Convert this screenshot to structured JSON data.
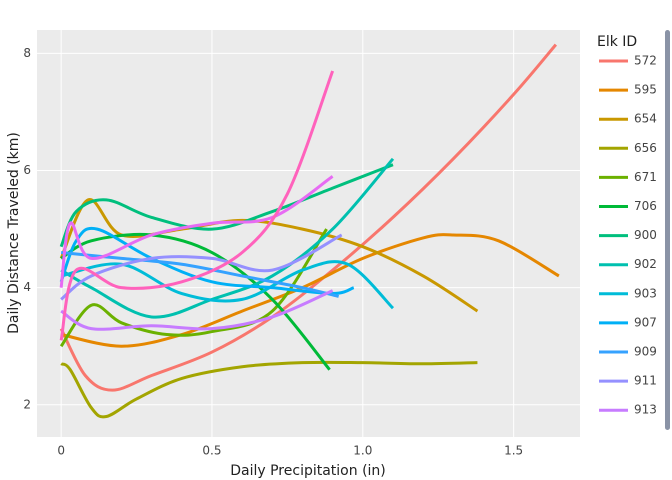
{
  "chart_data": {
    "type": "line",
    "x_label": "Daily Precipitation (in)",
    "y_label": "Daily Distance Traveled (km)",
    "legend_title": "Elk ID",
    "legend": "right",
    "grid": true,
    "xlim": [
      -0.08,
      1.72
    ],
    "ylim": [
      1.45,
      8.4
    ],
    "xticks": [
      0,
      0.5,
      {
        "value": 1,
        "label": "1.0"
      },
      1.5
    ],
    "yticks": [
      2,
      4,
      6,
      8
    ],
    "series": [
      {
        "name": "572",
        "color": "#F8766D",
        "x": [
          0,
          0.08,
          0.17,
          0.3,
          0.5,
          0.7,
          0.9,
          1.1,
          1.3,
          1.5,
          1.64
        ],
        "values": [
          3.3,
          2.5,
          2.25,
          2.5,
          2.9,
          3.5,
          4.3,
          5.2,
          6.2,
          7.3,
          8.15
        ]
      },
      {
        "name": "595",
        "color": "#E58700",
        "x": [
          0,
          0.2,
          0.4,
          0.6,
          0.8,
          1.0,
          1.2,
          1.3,
          1.45,
          1.65
        ],
        "values": [
          3.2,
          3.0,
          3.2,
          3.6,
          4.0,
          4.5,
          4.85,
          4.9,
          4.8,
          4.2
        ]
      },
      {
        "name": "654",
        "color": "#C99800",
        "x": [
          0,
          0.09,
          0.2,
          0.4,
          0.6,
          0.8,
          1.0,
          1.2,
          1.38
        ],
        "values": [
          4.5,
          5.5,
          4.9,
          5.0,
          5.15,
          5.0,
          4.7,
          4.2,
          3.6
        ]
      },
      {
        "name": "656",
        "color": "#A3A500",
        "x": [
          0,
          0.03,
          0.1,
          0.15,
          0.25,
          0.4,
          0.6,
          0.8,
          1.0,
          1.2,
          1.38
        ],
        "values": [
          2.7,
          2.6,
          1.95,
          1.8,
          2.1,
          2.45,
          2.65,
          2.72,
          2.72,
          2.7,
          2.72
        ]
      },
      {
        "name": "671",
        "color": "#6BB100",
        "x": [
          0,
          0.1,
          0.2,
          0.35,
          0.5,
          0.7,
          0.88
        ],
        "values": [
          3.0,
          3.7,
          3.4,
          3.2,
          3.25,
          3.6,
          5.0
        ]
      },
      {
        "name": "706",
        "color": "#00BA38",
        "x": [
          0,
          0.1,
          0.3,
          0.5,
          0.7,
          0.89
        ],
        "values": [
          4.5,
          4.8,
          4.9,
          4.6,
          3.8,
          2.6
        ]
      },
      {
        "name": "900",
        "color": "#00BF7D",
        "x": [
          0,
          0.05,
          0.15,
          0.3,
          0.5,
          0.7,
          0.9,
          1.1
        ],
        "values": [
          4.7,
          5.3,
          5.5,
          5.2,
          5.0,
          5.3,
          5.7,
          6.1
        ]
      },
      {
        "name": "902",
        "color": "#00C0AF",
        "x": [
          0,
          0.1,
          0.3,
          0.5,
          0.7,
          0.9,
          1.1
        ],
        "values": [
          4.3,
          4.0,
          3.5,
          3.8,
          4.2,
          5.0,
          6.2
        ]
      },
      {
        "name": "903",
        "color": "#00BCD8",
        "x": [
          0,
          0.2,
          0.4,
          0.6,
          0.8,
          0.95,
          1.1
        ],
        "values": [
          4.2,
          4.4,
          3.9,
          3.8,
          4.3,
          4.4,
          3.65
        ]
      },
      {
        "name": "907",
        "color": "#00B0F6",
        "x": [
          0,
          0.05,
          0.12,
          0.3,
          0.5,
          0.7,
          0.9,
          0.97
        ],
        "values": [
          4.1,
          4.8,
          5.0,
          4.5,
          4.1,
          4.0,
          3.9,
          4.0
        ]
      },
      {
        "name": "909",
        "color": "#35A2FF",
        "x": [
          0,
          0.2,
          0.4,
          0.6,
          0.8,
          0.92
        ],
        "values": [
          4.6,
          4.5,
          4.4,
          4.2,
          4.0,
          3.85
        ]
      },
      {
        "name": "911",
        "color": "#9590FF",
        "x": [
          0,
          0.1,
          0.3,
          0.5,
          0.7,
          0.93
        ],
        "values": [
          3.8,
          4.2,
          4.5,
          4.5,
          4.3,
          4.9
        ]
      },
      {
        "name": "913",
        "color": "#C77CFF",
        "x": [
          0,
          0.1,
          0.3,
          0.5,
          0.7,
          0.9
        ],
        "values": [
          3.6,
          3.3,
          3.35,
          3.3,
          3.5,
          3.95
        ]
      },
      {
        "color": "#E76BF3",
        "x": [
          0,
          0.03,
          0.1,
          0.3,
          0.5,
          0.7,
          0.9
        ],
        "values": [
          4.0,
          5.1,
          4.5,
          4.9,
          5.1,
          5.2,
          5.9
        ]
      },
      {
        "color": "#FF62BC",
        "x": [
          0,
          0.05,
          0.2,
          0.4,
          0.6,
          0.75,
          0.9
        ],
        "values": [
          3.1,
          4.3,
          4.0,
          4.1,
          4.6,
          5.6,
          7.7
        ]
      }
    ]
  }
}
